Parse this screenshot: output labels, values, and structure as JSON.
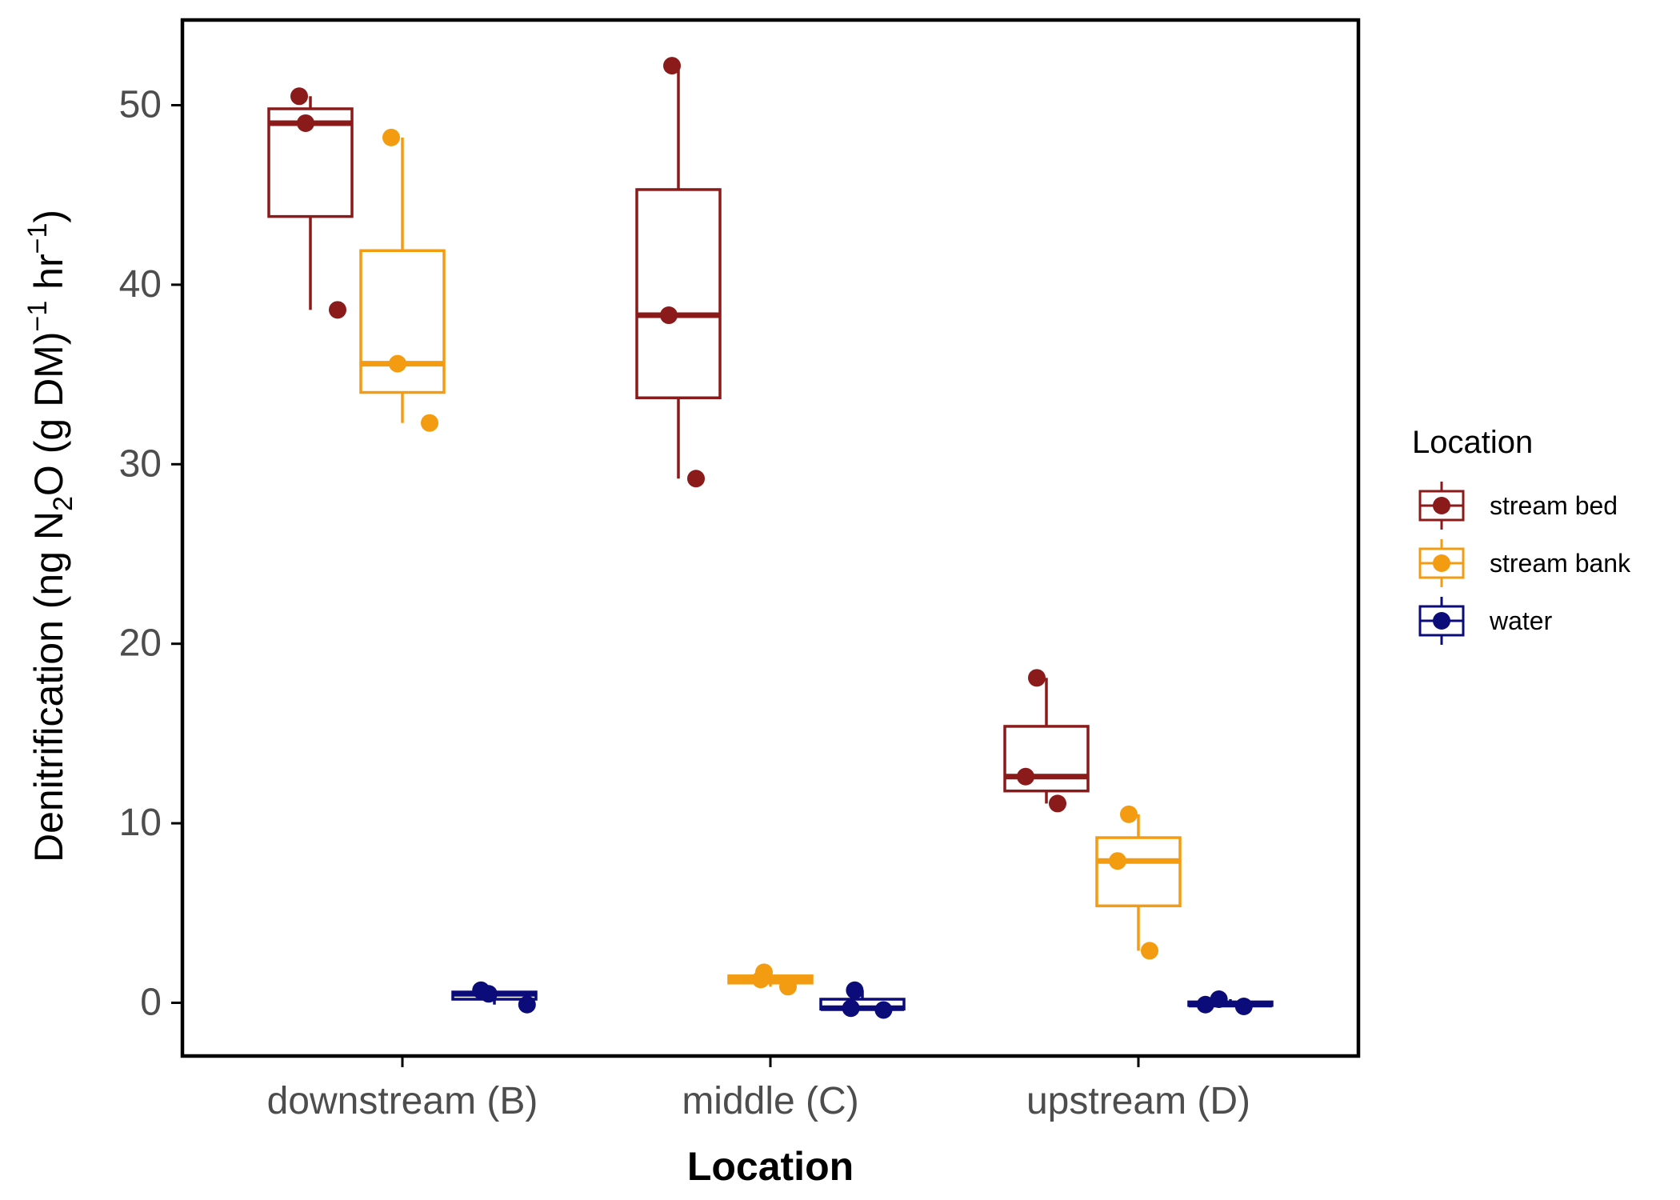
{
  "chart_data": {
    "type": "boxplot",
    "categories": [
      "downstream (B)",
      "middle (C)",
      "upstream (D)"
    ],
    "xlabel": "Location",
    "ylabel": {
      "prefix": "Denitrification (ng N",
      "sub": "2",
      "middle": "O (g DM)",
      "sup1": "−1",
      "hr": " hr",
      "sup2": "−1",
      "suffix": ")"
    },
    "ylim": [
      -3,
      55
    ],
    "yticks": [
      0,
      10,
      20,
      30,
      40,
      50
    ],
    "ytick_labels": [
      "0",
      "10",
      "20",
      "30",
      "40",
      "50"
    ],
    "grid": false,
    "legend": {
      "title": "Location",
      "placement": "right",
      "entries": [
        "stream bed",
        "stream bank",
        "water"
      ]
    },
    "series": [
      {
        "name": "stream bed",
        "color": "#8B1A1A",
        "boxes": [
          {
            "category": "downstream (B)",
            "whisker_low": 38.6,
            "q1": 43.8,
            "median": 49.0,
            "q3": 49.8,
            "whisker_high": 50.5,
            "points": [
              50.5,
              49.0,
              38.6
            ]
          },
          {
            "category": "middle (C)",
            "whisker_low": 29.2,
            "q1": 33.7,
            "median": 38.3,
            "q3": 45.3,
            "whisker_high": 52.2,
            "points": [
              52.2,
              38.3,
              29.2
            ]
          },
          {
            "category": "upstream (D)",
            "whisker_low": 11.1,
            "q1": 11.8,
            "median": 12.6,
            "q3": 15.4,
            "whisker_high": 18.1,
            "points": [
              18.1,
              12.6,
              11.1
            ]
          }
        ]
      },
      {
        "name": "stream bank",
        "color": "#F39C12",
        "boxes": [
          {
            "category": "downstream (B)",
            "whisker_low": 32.3,
            "q1": 34.0,
            "median": 35.6,
            "q3": 41.9,
            "whisker_high": 48.2,
            "points": [
              48.2,
              35.6,
              32.3
            ]
          },
          {
            "category": "middle (C)",
            "whisker_low": 0.9,
            "q1": 1.1,
            "median": 1.3,
            "q3": 1.5,
            "whisker_high": 1.7,
            "points": [
              1.7,
              1.3,
              0.9
            ]
          },
          {
            "category": "upstream (D)",
            "whisker_low": 2.9,
            "q1": 5.4,
            "median": 7.9,
            "q3": 9.2,
            "whisker_high": 10.5,
            "points": [
              10.5,
              7.9,
              2.9
            ]
          }
        ]
      },
      {
        "name": "water",
        "color": "#0B0B7A",
        "boxes": [
          {
            "category": "downstream (B)",
            "whisker_low": -0.1,
            "q1": 0.2,
            "median": 0.5,
            "q3": 0.6,
            "whisker_high": 0.7,
            "points": [
              0.7,
              0.5,
              -0.1
            ]
          },
          {
            "category": "middle (C)",
            "whisker_low": -0.4,
            "q1": -0.35,
            "median": -0.3,
            "q3": 0.2,
            "whisker_high": 0.7,
            "points": [
              0.7,
              -0.3,
              -0.4
            ]
          },
          {
            "category": "upstream (D)",
            "whisker_low": -0.2,
            "q1": -0.15,
            "median": -0.1,
            "q3": 0.05,
            "whisker_high": 0.2,
            "points": [
              0.2,
              -0.1,
              -0.2
            ]
          }
        ]
      }
    ]
  }
}
